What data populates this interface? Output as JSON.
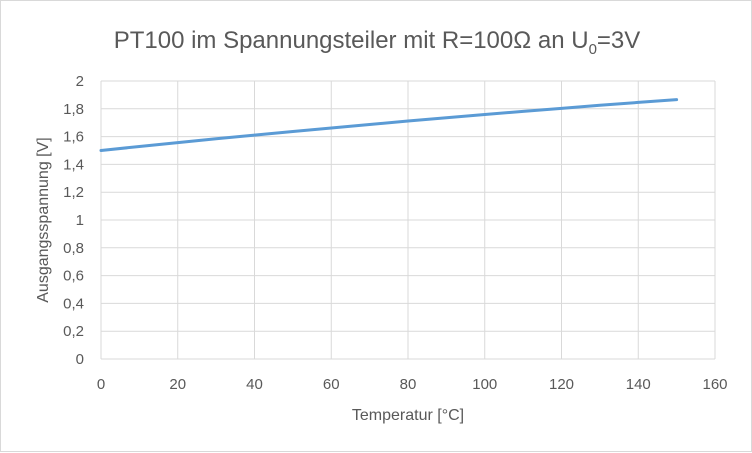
{
  "chart_data": {
    "type": "line",
    "title": {
      "main": "PT100 im Spannungsteiler mit R=100Ω an U",
      "subscript": "0",
      "suffix": "=3V"
    },
    "xlabel": "Temperatur [°C]",
    "ylabel": "Ausgangsspannung [V]",
    "xlim": [
      0,
      160
    ],
    "ylim": [
      0,
      2
    ],
    "xticks": [
      "0",
      "20",
      "40",
      "60",
      "80",
      "100",
      "120",
      "140",
      "160"
    ],
    "yticks": [
      "0",
      "0,2",
      "0,4",
      "0,6",
      "0,8",
      "1",
      "1,2",
      "1,4",
      "1,6",
      "1,8",
      "2"
    ],
    "grid": true,
    "series": [
      {
        "color": "#5b9bd5",
        "x": [
          0,
          10,
          20,
          30,
          40,
          50,
          60,
          70,
          80,
          90,
          100,
          110,
          120,
          130,
          140,
          150
        ],
        "y": [
          1.5,
          1.529,
          1.557,
          1.584,
          1.611,
          1.637,
          1.662,
          1.687,
          1.712,
          1.735,
          1.759,
          1.781,
          1.803,
          1.825,
          1.846,
          1.866
        ]
      }
    ]
  }
}
